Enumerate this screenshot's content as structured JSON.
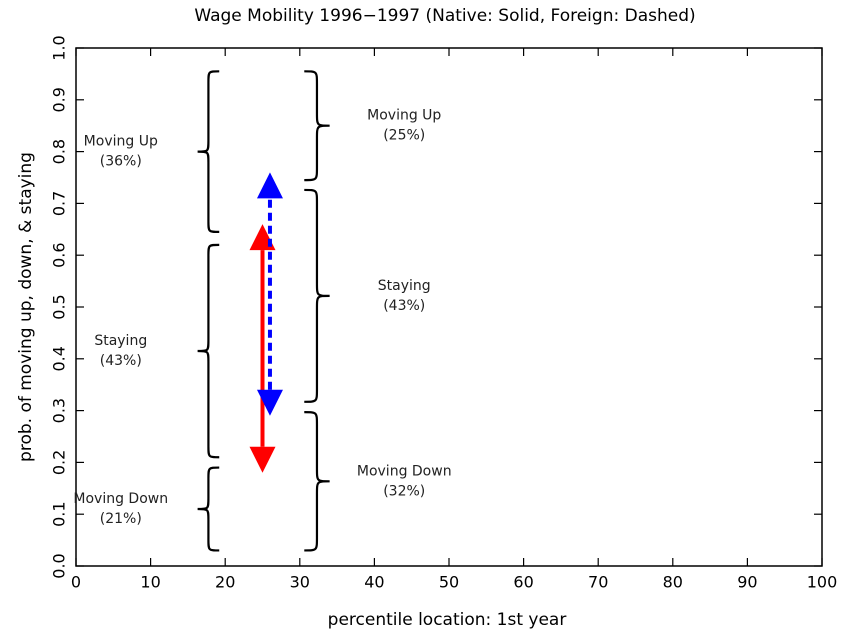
{
  "chart_data": {
    "type": "range-arrows",
    "title": "Wage Mobility 1996−1997 (Native: Solid, Foreign: Dashed)",
    "x_label": "percentile location: 1st year",
    "y_label": "prob. of moving up, down, & staying",
    "xlim": [
      0,
      100
    ],
    "xticks": [
      0,
      10,
      20,
      30,
      40,
      50,
      60,
      70,
      80,
      90,
      100
    ],
    "ylim": [
      0,
      1
    ],
    "yticks": [
      {
        "value": 0,
        "label": "0.0"
      },
      0.1,
      0.2,
      0.3,
      0.4,
      0.5,
      0.6,
      0.7,
      0.8,
      0.9,
      {
        "value": 1,
        "label": "1.0"
      }
    ],
    "groups": [
      {
        "x": 25,
        "color": "#ff0000",
        "dash": false,
        "side": "left",
        "arrow": [
          0.18,
          0.66
        ],
        "bands": [
          {
            "label": "Moving Down",
            "value_label": "(21%)",
            "value": 21,
            "range": [
              0.03,
              0.19
            ]
          },
          {
            "label": "Staying",
            "value_label": "(43%)",
            "value": 43,
            "range": [
              0.21,
              0.62
            ]
          },
          {
            "label": "Moving Up",
            "value_label": "(36%)",
            "value": 36,
            "range": [
              0.645,
              0.955
            ]
          }
        ]
      },
      {
        "x": 26,
        "color": "#0000ff",
        "dash": true,
        "side": "right",
        "arrow": [
          0.29,
          0.76
        ],
        "bands": [
          {
            "label": "Moving Down",
            "value_label": "(32%)",
            "value": 32,
            "range": [
              0.03,
              0.297
            ]
          },
          {
            "label": "Staying",
            "value_label": "(43%)",
            "value": 43,
            "range": [
              0.317,
              0.726
            ]
          },
          {
            "label": "Moving Up",
            "value_label": "(25%)",
            "value": 25,
            "range": [
              0.745,
              0.955
            ]
          }
        ]
      }
    ]
  }
}
